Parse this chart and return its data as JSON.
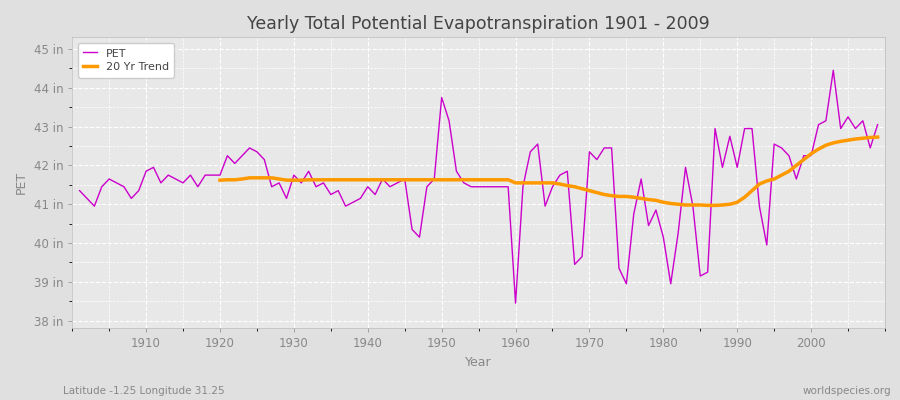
{
  "title": "Yearly Total Potential Evapotranspiration 1901 - 2009",
  "xlabel": "Year",
  "ylabel": "PET",
  "footnote_left": "Latitude -1.25 Longitude 31.25",
  "footnote_right": "worldspecies.org",
  "ylim": [
    37.8,
    45.3
  ],
  "xlim": [
    1900,
    2010
  ],
  "ytick_labels": [
    "38 in",
    "39 in",
    "40 in",
    "41 in",
    "42 in",
    "43 in",
    "44 in",
    "45 in"
  ],
  "ytick_values": [
    38,
    39,
    40,
    41,
    42,
    43,
    44,
    45
  ],
  "xtick_values": [
    1910,
    1920,
    1930,
    1940,
    1950,
    1960,
    1970,
    1980,
    1990,
    2000
  ],
  "pet_color": "#cc00cc",
  "trend_color": "#ff9900",
  "bg_color": "#e0e0e0",
  "plot_bg_color": "#e8e8e8",
  "grid_color": "#ffffff",
  "legend_entries": [
    "PET",
    "20 Yr Trend"
  ],
  "pet_years": [
    1901,
    1902,
    1903,
    1904,
    1905,
    1906,
    1907,
    1908,
    1909,
    1910,
    1911,
    1912,
    1913,
    1914,
    1915,
    1916,
    1917,
    1918,
    1919,
    1920,
    1921,
    1922,
    1923,
    1924,
    1925,
    1926,
    1927,
    1928,
    1929,
    1930,
    1931,
    1932,
    1933,
    1934,
    1935,
    1936,
    1937,
    1938,
    1939,
    1940,
    1941,
    1942,
    1943,
    1944,
    1945,
    1946,
    1947,
    1948,
    1949,
    1950,
    1951,
    1952,
    1953,
    1954,
    1955,
    1956,
    1957,
    1958,
    1959,
    1960,
    1961,
    1962,
    1963,
    1964,
    1965,
    1966,
    1967,
    1968,
    1969,
    1970,
    1971,
    1972,
    1973,
    1974,
    1975,
    1976,
    1977,
    1978,
    1979,
    1980,
    1981,
    1982,
    1983,
    1984,
    1985,
    1986,
    1987,
    1988,
    1989,
    1990,
    1991,
    1992,
    1993,
    1994,
    1995,
    1996,
    1997,
    1998,
    1999,
    2000,
    2001,
    2002,
    2003,
    2004,
    2005,
    2006,
    2007,
    2008,
    2009
  ],
  "pet_values": [
    41.35,
    41.15,
    40.95,
    41.45,
    41.65,
    41.55,
    41.45,
    41.15,
    41.35,
    41.85,
    41.95,
    41.55,
    41.75,
    41.65,
    41.55,
    41.75,
    41.45,
    41.75,
    41.75,
    41.75,
    42.25,
    42.05,
    42.25,
    42.45,
    42.35,
    42.15,
    41.45,
    41.55,
    41.15,
    41.75,
    41.55,
    41.85,
    41.45,
    41.55,
    41.25,
    41.35,
    40.95,
    41.05,
    41.15,
    41.45,
    41.25,
    41.65,
    41.45,
    41.55,
    41.65,
    40.35,
    40.15,
    41.45,
    41.65,
    43.75,
    43.15,
    41.85,
    41.55,
    41.45,
    41.45,
    41.45,
    41.45,
    41.45,
    41.45,
    38.45,
    41.45,
    42.35,
    42.55,
    40.95,
    41.45,
    41.75,
    41.85,
    39.45,
    39.65,
    42.35,
    42.15,
    42.45,
    42.45,
    39.35,
    38.95,
    40.75,
    41.65,
    40.45,
    40.85,
    40.15,
    38.95,
    40.25,
    41.95,
    40.95,
    39.15,
    39.25,
    42.95,
    41.95,
    42.75,
    41.95,
    42.95,
    42.95,
    40.95,
    39.95,
    42.55,
    42.45,
    42.25,
    41.65,
    42.25,
    42.25,
    43.05,
    43.15,
    44.45,
    42.95,
    43.25,
    42.95,
    43.15,
    42.45,
    43.05
  ],
  "trend_years": [
    1920,
    1921,
    1922,
    1923,
    1924,
    1925,
    1926,
    1927,
    1928,
    1929,
    1930,
    1931,
    1932,
    1933,
    1934,
    1935,
    1936,
    1937,
    1938,
    1939,
    1940,
    1941,
    1942,
    1943,
    1944,
    1945,
    1946,
    1947,
    1948,
    1949,
    1950,
    1951,
    1952,
    1953,
    1954,
    1955,
    1956,
    1957,
    1958,
    1959,
    1960,
    1961,
    1962,
    1963,
    1964,
    1965,
    1966,
    1967,
    1968,
    1969,
    1970,
    1971,
    1972,
    1973,
    1974,
    1975,
    1976,
    1977,
    1978,
    1979,
    1980,
    1981,
    1982,
    1983,
    1984,
    1985,
    1986,
    1987,
    1988,
    1989,
    1990,
    1991,
    1992,
    1993,
    1994,
    1995,
    1996,
    1997,
    1998,
    1999,
    2000,
    2001,
    2002,
    2003,
    2004,
    2005,
    2006,
    2007,
    2008,
    2009
  ],
  "trend_values": [
    41.62,
    41.63,
    41.63,
    41.65,
    41.68,
    41.68,
    41.68,
    41.68,
    41.65,
    41.62,
    41.62,
    41.62,
    41.63,
    41.63,
    41.63,
    41.63,
    41.63,
    41.63,
    41.63,
    41.63,
    41.63,
    41.63,
    41.63,
    41.63,
    41.63,
    41.63,
    41.63,
    41.63,
    41.63,
    41.63,
    41.63,
    41.63,
    41.63,
    41.63,
    41.63,
    41.63,
    41.63,
    41.63,
    41.63,
    41.63,
    41.55,
    41.55,
    41.55,
    41.55,
    41.55,
    41.55,
    41.52,
    41.48,
    41.45,
    41.4,
    41.35,
    41.3,
    41.25,
    41.22,
    41.2,
    41.2,
    41.18,
    41.15,
    41.12,
    41.1,
    41.05,
    41.02,
    41.0,
    40.98,
    40.98,
    40.98,
    40.97,
    40.97,
    40.98,
    41.0,
    41.05,
    41.18,
    41.35,
    41.52,
    41.6,
    41.65,
    41.75,
    41.85,
    42.0,
    42.15,
    42.3,
    42.42,
    42.52,
    42.58,
    42.62,
    42.65,
    42.68,
    42.7,
    42.72,
    42.73
  ]
}
